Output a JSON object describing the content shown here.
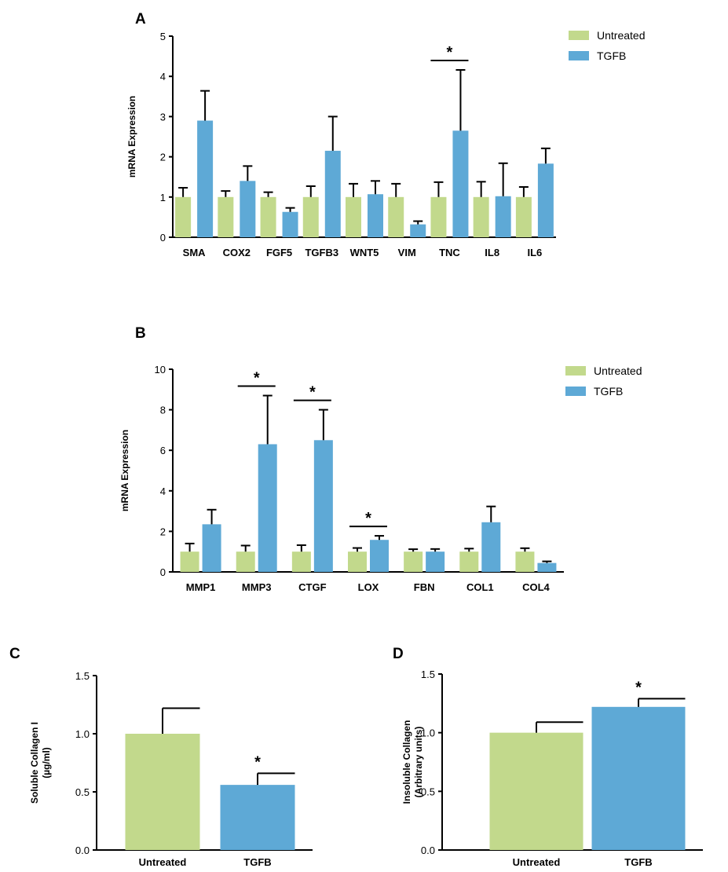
{
  "colors": {
    "untreated": "#c2d98c",
    "tgfb": "#5ea9d6"
  },
  "chart_data": [
    {
      "panel": "A",
      "type": "bar",
      "ylabel": "mRNA Expression",
      "ylim": [
        0,
        5
      ],
      "yticks": [
        0,
        1,
        2,
        3,
        4,
        5
      ],
      "categories": [
        "SMA",
        "COX2",
        "FGF5",
        "TGFB3",
        "WNT5",
        "VIM",
        "TNC",
        "IL8",
        "IL6"
      ],
      "legend": "top-right",
      "series": [
        {
          "name": "Untreated",
          "values": [
            1,
            1,
            1,
            1,
            1,
            1,
            1,
            1,
            1
          ],
          "errors": [
            0.23,
            0.15,
            0.12,
            0.27,
            0.33,
            0.33,
            0.37,
            0.38,
            0.25
          ]
        },
        {
          "name": "TGFB",
          "values": [
            2.9,
            1.4,
            0.63,
            2.15,
            1.07,
            0.32,
            2.65,
            1.02,
            1.83
          ],
          "errors": [
            0.74,
            0.37,
            0.1,
            0.85,
            0.33,
            0.08,
            1.51,
            0.82,
            0.38
          ]
        }
      ],
      "significance": [
        {
          "category": "TNC",
          "label": "*"
        }
      ]
    },
    {
      "panel": "B",
      "type": "bar",
      "ylabel": "mRNA Expression",
      "ylim": [
        0,
        10
      ],
      "yticks": [
        0,
        2,
        4,
        6,
        8,
        10
      ],
      "categories": [
        "MMP1",
        "MMP3",
        "CTGF",
        "LOX",
        "FBN",
        "COL1",
        "COL4"
      ],
      "legend": "top-right",
      "series": [
        {
          "name": "Untreated",
          "values": [
            1,
            1,
            1,
            1,
            1,
            1,
            1
          ],
          "errors": [
            0.4,
            0.3,
            0.32,
            0.18,
            0.12,
            0.15,
            0.17
          ]
        },
        {
          "name": "TGFB",
          "values": [
            2.35,
            6.3,
            6.5,
            1.58,
            1.0,
            2.45,
            0.44
          ],
          "errors": [
            0.72,
            2.4,
            1.5,
            0.2,
            0.13,
            0.78,
            0.08
          ]
        }
      ],
      "significance": [
        {
          "category": "MMP3",
          "label": "*"
        },
        {
          "category": "CTGF",
          "label": "*"
        },
        {
          "category": "LOX",
          "label": "*"
        }
      ]
    },
    {
      "panel": "C",
      "type": "bar",
      "ylabel": "Soluble Collagen I",
      "ylabel2": "(µg/ml)",
      "ylim": [
        0,
        1.5
      ],
      "yticks": [
        "0.0",
        "0.5",
        "1.0",
        "1.5"
      ],
      "categories": [
        "Untreated",
        "TGFB"
      ],
      "values": [
        1.0,
        0.56
      ],
      "errors": [
        0.22,
        0.1
      ],
      "significance": [
        {
          "category": "TGFB",
          "label": "*"
        }
      ]
    },
    {
      "panel": "D",
      "type": "bar",
      "ylabel": "Insoluble Collagen",
      "ylabel2": "(Arbitrary units)",
      "ylim": [
        0,
        1.5
      ],
      "yticks": [
        "0.0",
        "0.5",
        "1.0",
        "1.5"
      ],
      "categories": [
        "Untreated",
        "TGFB"
      ],
      "values": [
        1.0,
        1.22
      ],
      "errors": [
        0.09,
        0.07
      ],
      "significance": [
        {
          "category": "TGFB",
          "label": "*"
        }
      ]
    }
  ]
}
